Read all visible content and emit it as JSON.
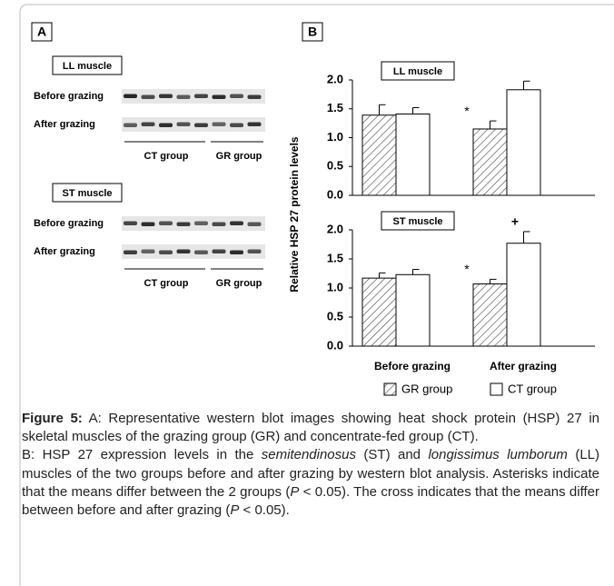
{
  "panel_a": {
    "label": "A",
    "blots": [
      {
        "title": "LL muscle",
        "rows": [
          "Before grazing",
          "After grazing"
        ],
        "groups": [
          "CT group",
          "GR group"
        ]
      },
      {
        "title": "ST muscle",
        "rows": [
          "Before grazing",
          "After grazing"
        ],
        "groups": [
          "CT group",
          "GR group"
        ]
      }
    ]
  },
  "chart_data": {
    "type": "bar",
    "label": "B",
    "ylabel": "Relative HSP 27 protein levels",
    "categories": [
      "Before grazing",
      "After grazing"
    ],
    "series": [
      {
        "name": "GR group",
        "color": "#ffffff",
        "pattern": "hatch"
      },
      {
        "name": "CT group",
        "color": "#ffffff"
      }
    ],
    "ylim": [
      0,
      2
    ],
    "yticks": [
      {
        "value": 0,
        "label": "0.0"
      },
      0.5,
      {
        "value": 1,
        "label": "1.0"
      },
      1.5,
      {
        "value": 2,
        "label": "2.0"
      }
    ],
    "panels": [
      {
        "title": "LL muscle",
        "series": [
          {
            "values": [
              1.39,
              1.15
            ],
            "errors": [
              0.18,
              0.14
            ],
            "markers": [
              null,
              "*"
            ]
          },
          {
            "values": [
              1.41,
              1.83
            ],
            "errors": [
              0.11,
              0.15
            ],
            "markers": [
              null,
              null
            ]
          }
        ]
      },
      {
        "title": "ST muscle",
        "series": [
          {
            "values": [
              1.17,
              1.07
            ],
            "errors": [
              0.09,
              0.08
            ],
            "markers": [
              null,
              "*"
            ]
          },
          {
            "values": [
              1.23,
              1.77
            ],
            "errors": [
              0.09,
              0.2
            ],
            "markers": [
              null,
              "+"
            ]
          }
        ]
      }
    ]
  },
  "caption": {
    "label": "Figure 5:",
    "paragraphs": [
      [
        {
          "text": " A: Representative western blot images showing heat shock protein (HSP) 27 in skeletal muscles of the grazing group (GR) and concentrate-fed group (CT)."
        }
      ],
      [
        {
          "text": "B: HSP 27 expression levels in the "
        },
        {
          "text": "semitendinosus",
          "italic": true
        },
        {
          "text": " (ST) and "
        },
        {
          "text": "longissimus lumborum",
          "italic": true
        },
        {
          "text": " (LL) muscles of the two groups before and after grazing by western blot analysis. Asterisks indicate that the means differ between the 2 groups ("
        },
        {
          "text": "P",
          "italic": true
        },
        {
          "text": " < 0.05). The cross indicates that the means differ between before and after grazing ("
        },
        {
          "text": "P",
          "italic": true
        },
        {
          "text": " < 0.05)."
        }
      ]
    ]
  }
}
